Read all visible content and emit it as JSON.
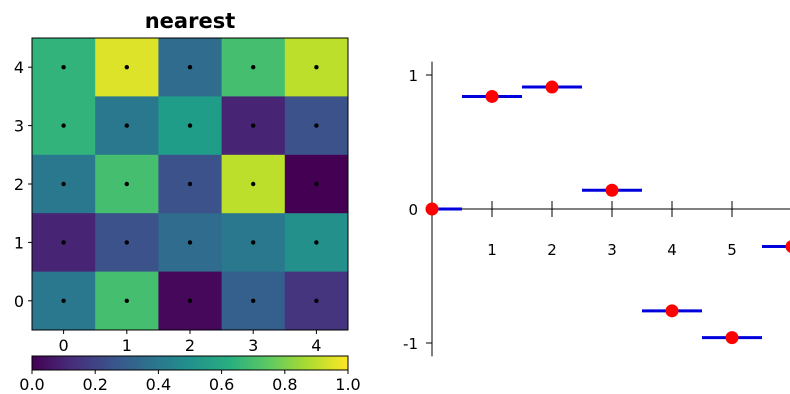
{
  "chart_data": [
    {
      "type": "heatmap",
      "title": "nearest",
      "xticks": [
        "0",
        "1",
        "2",
        "3",
        "4"
      ],
      "yticks": [
        "0",
        "1",
        "2",
        "3",
        "4"
      ],
      "rows": [
        {
          "y": 4,
          "values": [
            0.65,
            0.95,
            0.35,
            0.7,
            0.9
          ]
        },
        {
          "y": 3,
          "values": [
            0.65,
            0.4,
            0.55,
            0.1,
            0.25
          ]
        },
        {
          "y": 2,
          "values": [
            0.4,
            0.7,
            0.25,
            0.9,
            0.0
          ]
        },
        {
          "y": 1,
          "values": [
            0.1,
            0.25,
            0.35,
            0.4,
            0.5
          ]
        },
        {
          "y": 0,
          "values": [
            0.4,
            0.7,
            0.02,
            0.3,
            0.15
          ]
        }
      ],
      "grid_points": true,
      "colormap": "viridis",
      "colorbar": {
        "range": [
          0.0,
          1.0
        ],
        "ticks": [
          "0.0",
          "0.2",
          "0.4",
          "0.6",
          "0.8",
          "1.0"
        ],
        "orientation": "horizontal"
      }
    },
    {
      "type": "scatter",
      "xticks": [
        "1",
        "2",
        "3",
        "4",
        "5"
      ],
      "yticks": [
        "1",
        "0",
        "-1"
      ],
      "xlim": [
        0,
        6
      ],
      "ylim": [
        -1.1,
        1.1
      ],
      "points": [
        {
          "x": 0,
          "y": 0.0
        },
        {
          "x": 1,
          "y": 0.84
        },
        {
          "x": 2,
          "y": 0.91
        },
        {
          "x": 3,
          "y": 0.14
        },
        {
          "x": 4,
          "y": -0.76
        },
        {
          "x": 5,
          "y": -0.96
        },
        {
          "x": 6,
          "y": -0.28
        }
      ],
      "step_half_width": 0.5,
      "point_color": "#ff0000",
      "step_color": "#0000dd",
      "spines": "centered at origin"
    }
  ]
}
